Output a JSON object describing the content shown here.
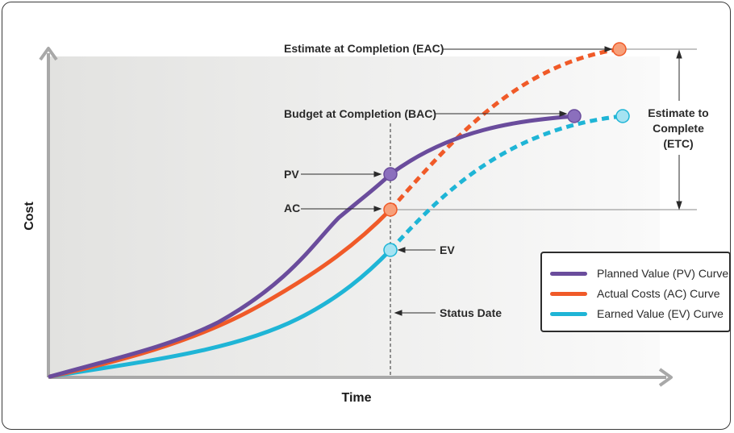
{
  "labels": {
    "eac": "Estimate at Completion (EAC)",
    "bac": "Budget at Completion (BAC)",
    "pv": "PV",
    "ac": "AC",
    "ev": "EV",
    "status_date": "Status Date",
    "etc_line1": "Estimate to",
    "etc_line2": "Complete",
    "etc_line3": "(ETC)",
    "xlabel": "Time",
    "ylabel": "Cost"
  },
  "legend": [
    {
      "label": "Planned Value (PV) Curve",
      "color": "#6a4c9c"
    },
    {
      "label": "Actual Costs (AC) Curve",
      "color": "#f05a28"
    },
    {
      "label": "Earned Value (EV) Curve",
      "color": "#1fb5d6"
    }
  ],
  "colors": {
    "pv": "#6a4c9c",
    "ac": "#f05a28",
    "ev": "#1fb5d6",
    "pv_marker": "#8b6fbd",
    "ac_marker": "#f7a07a",
    "ev_marker": "#a5e3f2",
    "axis": "#a8a8a8",
    "text": "#2a2a2a"
  }
}
